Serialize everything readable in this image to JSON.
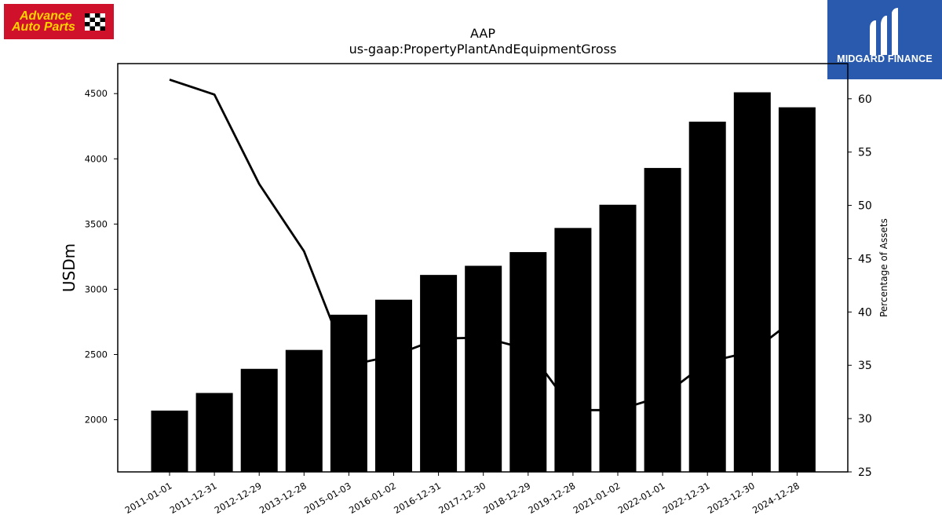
{
  "logos": {
    "left": {
      "line1": "Advance",
      "line2": "Auto Parts",
      "flag_icon": "checkered-flag-icon",
      "bg_color": "#d0112b",
      "text_color": "#ffd200"
    },
    "right": {
      "brand": "MIDGARD FINANCE",
      "mark_icon": "midgard-mark-icon",
      "bg_color": "#2a5aad"
    }
  },
  "chart_data": {
    "type": "bar",
    "title": "AAP",
    "subtitle": "us-gaap:PropertyPlantAndEquipmentGross",
    "ylabel": "USDm",
    "y2label": "Percentage of Assets",
    "categories": [
      "2011-01-01",
      "2011-12-31",
      "2012-12-29",
      "2013-12-28",
      "2015-01-03",
      "2016-01-02",
      "2016-12-31",
      "2017-12-30",
      "2018-12-29",
      "2019-12-28",
      "2021-01-02",
      "2022-01-01",
      "2022-12-31",
      "2023-12-30",
      "2024-12-28"
    ],
    "series": [
      {
        "type": "bar",
        "axis": "left",
        "color": "#000000",
        "values": [
          2070,
          2205,
          2390,
          2535,
          2805,
          2920,
          3110,
          3180,
          3285,
          3470,
          3648,
          3930,
          4285,
          4510,
          4395
        ]
      },
      {
        "type": "line",
        "axis": "right",
        "color": "#000000",
        "values": [
          61.8,
          60.4,
          52.0,
          45.7,
          35.0,
          35.9,
          37.5,
          37.6,
          36.5,
          30.8,
          30.8,
          32.1,
          35.3,
          36.3,
          39.5
        ]
      }
    ],
    "ylim": [
      1600,
      4730
    ],
    "y_ticks": [
      2000,
      2500,
      3000,
      3500,
      4000,
      4500
    ],
    "y2lim": [
      25,
      63.3
    ],
    "y2_ticks": [
      25,
      30,
      35,
      40,
      45,
      50,
      55,
      60
    ],
    "grid": false,
    "legend": "none"
  }
}
